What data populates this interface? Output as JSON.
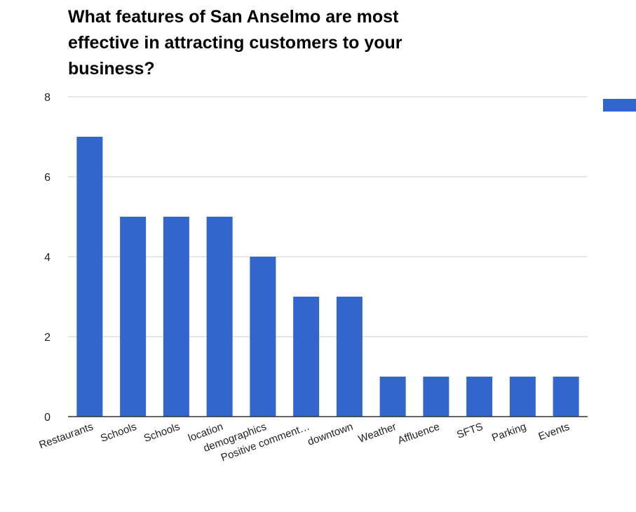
{
  "chart_data": {
    "type": "bar",
    "title": "What features of San Anselmo are most\neffective in attracting customers to your\nbusiness?",
    "categories": [
      "Restaurants",
      "Schools",
      "Schools",
      "location",
      "demographics",
      "Positive comment…",
      "downtown",
      "Weather",
      "Affluence",
      "SFTS",
      "Parking",
      "Events"
    ],
    "values": [
      7,
      5,
      5,
      5,
      4,
      3,
      3,
      1,
      1,
      1,
      1,
      1
    ],
    "ylim": [
      0,
      8
    ],
    "yticks": [
      "0",
      "2",
      "4",
      "6",
      "8"
    ],
    "xlabel": "",
    "ylabel": "",
    "grid": true,
    "legend_position": "right",
    "color": "#3366cc"
  }
}
